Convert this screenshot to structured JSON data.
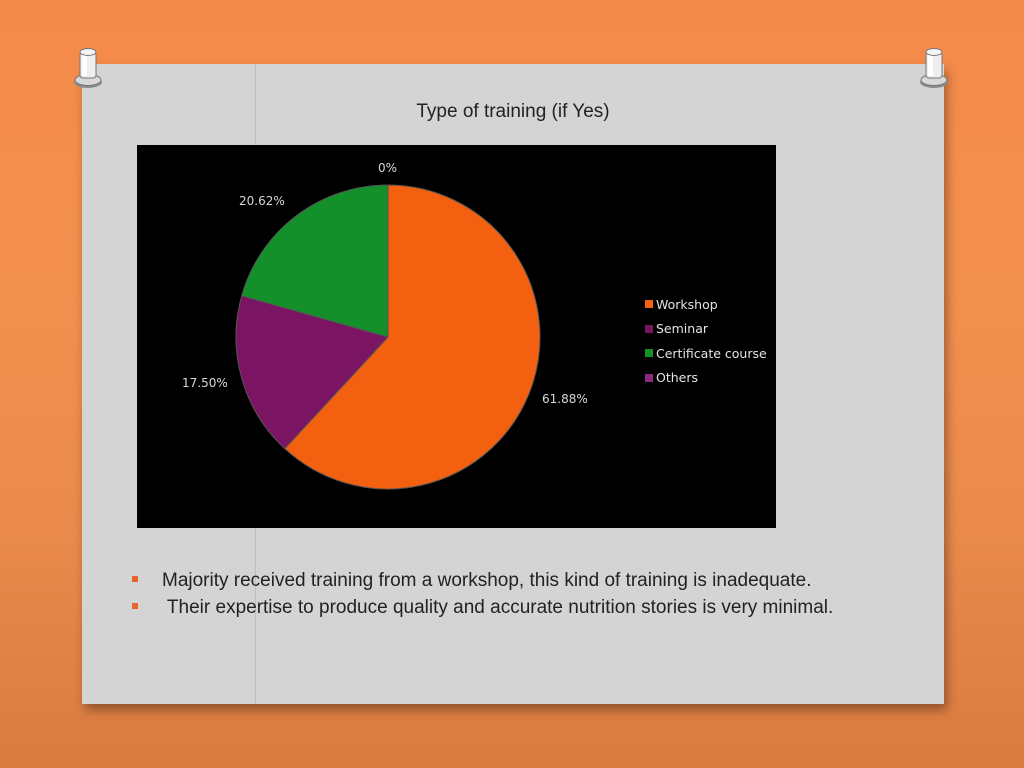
{
  "title": "Type of training (if Yes)",
  "chart_data": {
    "type": "pie",
    "title": "Type of training (if Yes)",
    "categories": [
      "Workshop",
      "Seminar",
      "Certificate course",
      "Others"
    ],
    "values": [
      61.88,
      17.5,
      20.62,
      0
    ],
    "labels": [
      "61.88%",
      "17.50%",
      "20.62%",
      "0%"
    ],
    "colors": [
      "#f26010",
      "#7b1563",
      "#13902a",
      "#8e2a7e"
    ],
    "legend": "right",
    "background": "#000000"
  },
  "bullets": [
    "Majority received training from a workshop, this kind of training is inadequate.",
    " Their expertise to produce quality and accurate nutrition stories is very minimal."
  ],
  "colors": {
    "bullet": "#e8642a",
    "board": "#d4d4d4",
    "background": "#f48a4a"
  }
}
